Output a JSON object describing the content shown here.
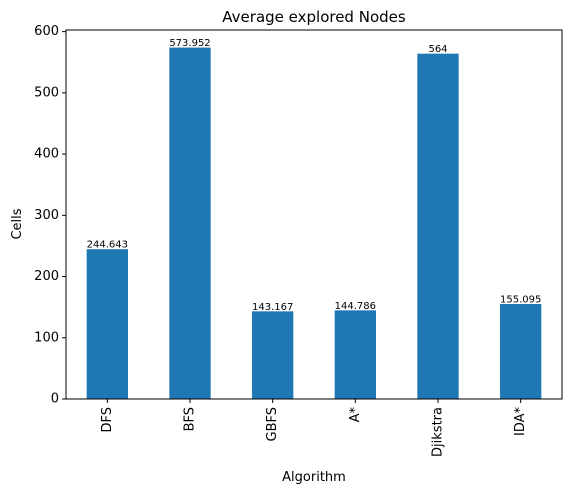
{
  "chart_data": {
    "type": "bar",
    "title": "Average explored Nodes",
    "xlabel": "Algorithm",
    "ylabel": "Cells",
    "categories": [
      "DFS",
      "BFS",
      "GBFS",
      "A*",
      "Djikstra",
      "IDA*"
    ],
    "values": [
      244.643,
      573.952,
      143.167,
      144.786,
      564,
      155.095
    ],
    "data_labels": [
      "244.643",
      "573.952",
      "143.167",
      "144.786",
      "564",
      "155.095"
    ],
    "ylim": [
      0,
      602.65
    ],
    "yticks": [
      0,
      100,
      200,
      300,
      400,
      500,
      600
    ],
    "grid": false,
    "legend": "none",
    "bar_color": "#1f77b4"
  }
}
